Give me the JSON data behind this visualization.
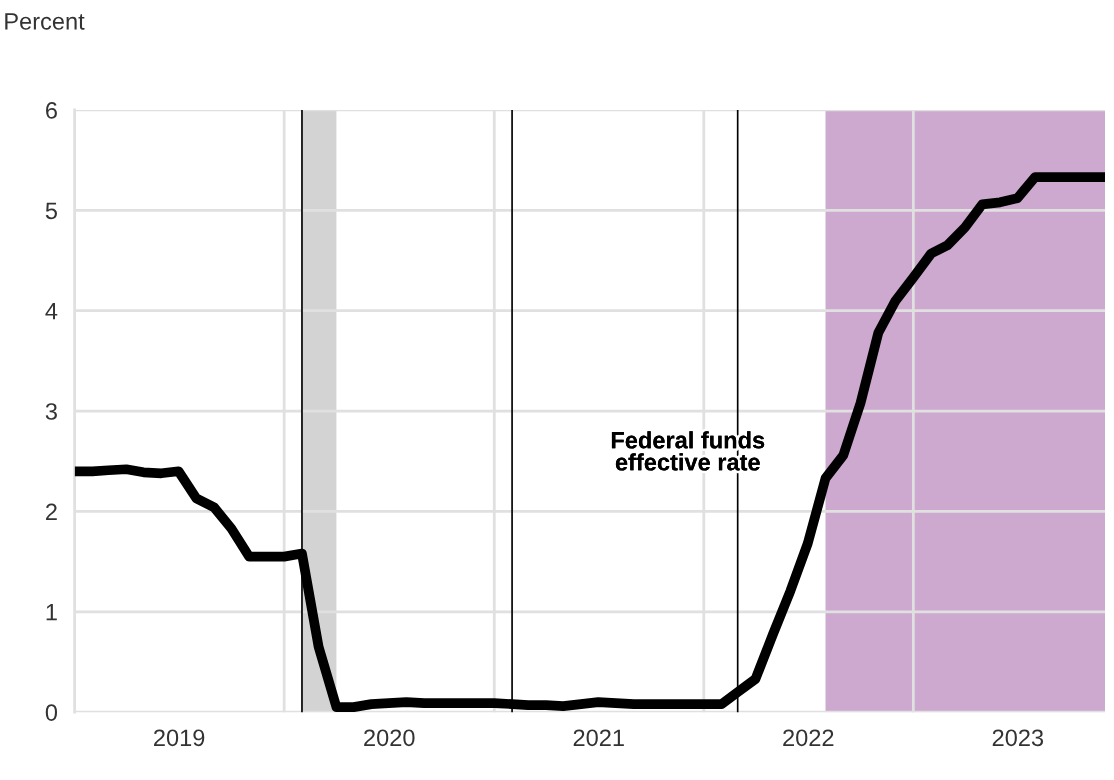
{
  "chart_data": {
    "type": "line",
    "ylabel": "Percent",
    "x": [
      "2019-01-01",
      "2019-02-01",
      "2019-03-01",
      "2019-04-01",
      "2019-05-01",
      "2019-06-01",
      "2019-07-01",
      "2019-08-01",
      "2019-09-01",
      "2019-10-01",
      "2019-11-01",
      "2019-12-01",
      "2020-01-01",
      "2020-02-01",
      "2020-03-01",
      "2020-04-01",
      "2020-05-01",
      "2020-06-01",
      "2020-07-01",
      "2020-08-01",
      "2020-09-01",
      "2020-10-01",
      "2020-11-01",
      "2020-12-01",
      "2021-01-01",
      "2021-02-01",
      "2021-03-01",
      "2021-04-01",
      "2021-05-01",
      "2021-06-01",
      "2021-07-01",
      "2021-08-01",
      "2021-09-01",
      "2021-10-01",
      "2021-11-01",
      "2021-12-01",
      "2022-01-01",
      "2022-02-01",
      "2022-03-01",
      "2022-04-01",
      "2022-05-01",
      "2022-06-01",
      "2022-07-01",
      "2022-08-01",
      "2022-09-01",
      "2022-10-01",
      "2022-11-01",
      "2022-12-01",
      "2023-01-01",
      "2023-02-01",
      "2023-03-01",
      "2023-04-01",
      "2023-05-01",
      "2023-06-01",
      "2023-07-01",
      "2023-08-01",
      "2023-09-01",
      "2023-10-01",
      "2023-11-01",
      "2023-12-01"
    ],
    "series": [
      {
        "color": "#000000",
        "values": [
          2.4,
          2.4,
          2.41,
          2.42,
          2.39,
          2.38,
          2.4,
          2.13,
          2.04,
          1.83,
          1.55,
          1.55,
          1.55,
          1.58,
          0.65,
          0.05,
          0.05,
          0.08,
          0.09,
          0.1,
          0.09,
          0.09,
          0.09,
          0.09,
          0.09,
          0.08,
          0.07,
          0.07,
          0.06,
          0.08,
          0.1,
          0.09,
          0.08,
          0.08,
          0.08,
          0.08,
          0.08,
          0.08,
          0.2,
          0.33,
          0.77,
          1.21,
          1.68,
          2.33,
          2.56,
          3.08,
          3.78,
          4.1,
          4.33,
          4.57,
          4.65,
          4.83,
          5.06,
          5.08,
          5.12,
          5.33,
          5.33,
          5.33,
          5.33,
          5.33
        ]
      }
    ],
    "xlim": [
      "2019-01-01",
      "2023-12-01"
    ],
    "xticks": [
      {
        "value": "2019-07-02",
        "label": "2019"
      },
      {
        "value": "2020-01-01",
        "label": null
      },
      {
        "value": "2020-07-02",
        "label": "2020"
      },
      {
        "value": "2021-01-01",
        "label": null
      },
      {
        "value": "2021-07-02",
        "label": "2021"
      },
      {
        "value": "2022-01-01",
        "label": null
      },
      {
        "value": "2022-07-02",
        "label": "2022"
      },
      {
        "value": "2023-01-01",
        "label": null
      },
      {
        "value": "2023-07-02",
        "label": "2023"
      }
    ],
    "ylim": [
      0,
      6
    ],
    "yticks": [
      0,
      1,
      2,
      3,
      4,
      5,
      6
    ],
    "grid": true,
    "legend": false,
    "line_style": "solid",
    "marker": "none",
    "ref_lines": [
      {
        "axis": "x",
        "value": "2020-02-01",
        "color": "#000000"
      },
      {
        "axis": "x",
        "value": "2021-02-01",
        "color": "#000000"
      },
      {
        "axis": "x",
        "value": "2022-03-01",
        "color": "#000000"
      }
    ],
    "bands": [
      {
        "axis": "x",
        "from": "2020-02-01",
        "to": "2020-04-01",
        "color": "#d3d3d3"
      },
      {
        "axis": "x",
        "from": "2022-08-01",
        "to": "2023-12-01",
        "color": "#cda8cf"
      }
    ],
    "annotations": [
      "Federal funds\neffective rate"
    ]
  }
}
